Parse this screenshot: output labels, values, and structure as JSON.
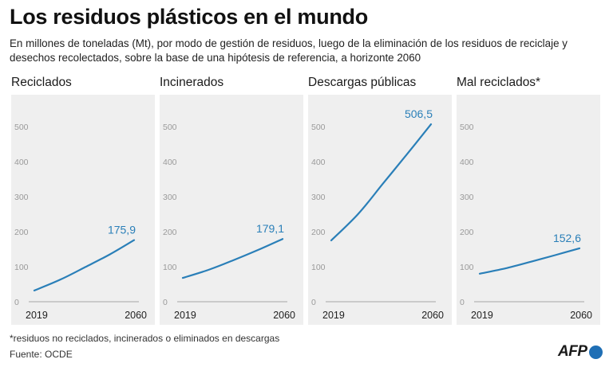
{
  "title": "Los residuos plásticos en el mundo",
  "subtitle": "En millones de toneladas (Mt), por modo de gestión de residuos, luego de la eliminación de los residuos de reciclaje y desechos recolectados, sobre la base de una hipótesis de referencia, a horizonte 2060",
  "footnote": "*residuos no reciclados, incinerados o eliminados en descargas",
  "source": "Fuente: OCDE",
  "logo": "AFP",
  "colors": {
    "line": "#2a7fb8",
    "panel_bg": "#efefef",
    "grid": "#cfcfcf",
    "tick": "#9a9a9a"
  },
  "chart_data": [
    {
      "type": "line",
      "title": "Reciclados",
      "x": [
        2019,
        2030,
        2040,
        2050,
        2060
      ],
      "values": [
        32,
        64,
        99,
        135,
        175.9
      ],
      "value_label": "175,9",
      "x_tick_labels": [
        "2019",
        "2060"
      ],
      "y_ticks": [
        0,
        100,
        200,
        300,
        400,
        500
      ],
      "ylim": [
        0,
        520
      ]
    },
    {
      "type": "line",
      "title": "Incinerados",
      "x": [
        2019,
        2030,
        2040,
        2050,
        2060
      ],
      "values": [
        68,
        92,
        119,
        148,
        179.1
      ],
      "value_label": "179,1",
      "x_tick_labels": [
        "2019",
        "2060"
      ],
      "y_ticks": [
        0,
        100,
        200,
        300,
        400,
        500
      ],
      "ylim": [
        0,
        520
      ]
    },
    {
      "type": "line",
      "title": "Descargas públicas",
      "x": [
        2019,
        2030,
        2040,
        2050,
        2060
      ],
      "values": [
        175,
        250,
        335,
        420,
        506.5
      ],
      "value_label": "506,5",
      "x_tick_labels": [
        "2019",
        "2060"
      ],
      "y_ticks": [
        0,
        100,
        200,
        300,
        400,
        500
      ],
      "ylim": [
        0,
        520
      ]
    },
    {
      "type": "line",
      "title": "Mal reciclados*",
      "x": [
        2019,
        2030,
        2040,
        2050,
        2060
      ],
      "values": [
        80,
        96,
        114,
        133,
        152.6
      ],
      "value_label": "152,6",
      "x_tick_labels": [
        "2019",
        "2060"
      ],
      "y_ticks": [
        0,
        100,
        200,
        300,
        400,
        500
      ],
      "ylim": [
        0,
        520
      ]
    }
  ]
}
